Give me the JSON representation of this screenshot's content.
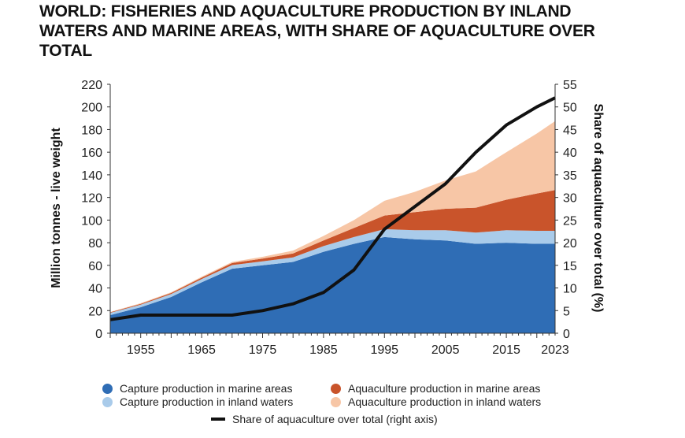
{
  "title_lines": [
    "WORLD: FISHERIES AND AQUACULTURE PRODUCTION BY INLAND",
    "WATERS AND MARINE AREAS, WITH SHARE OF AQUACULTURE OVER",
    "TOTAL"
  ],
  "chart_data": {
    "type": "area",
    "stacked": true,
    "ylabel": "Million tonnes - live weight",
    "y2label": "Share of aquaculture over total (%)",
    "ylim": [
      0,
      220
    ],
    "y2lim": [
      0,
      55
    ],
    "yticks": [
      0,
      20,
      40,
      60,
      80,
      100,
      120,
      140,
      160,
      180,
      200,
      220
    ],
    "y2ticks": [
      0,
      5,
      10,
      15,
      20,
      25,
      30,
      35,
      40,
      45,
      50,
      55
    ],
    "xlim": [
      1950,
      2023
    ],
    "xtick_labels": [
      "1955",
      "1965",
      "1975",
      "1985",
      "1995",
      "2005",
      "2015",
      "2023"
    ],
    "grid": false,
    "legend_position": "bottom",
    "x": [
      1950,
      1955,
      1960,
      1965,
      1970,
      1975,
      1980,
      1985,
      1990,
      1995,
      2000,
      2005,
      2010,
      2015,
      2020,
      2023
    ],
    "series": [
      {
        "name": "Capture production in marine areas",
        "color": "#2f6db5",
        "values": [
          16,
          23,
          32,
          45,
          57,
          60,
          63,
          72,
          79,
          85,
          83,
          82,
          79,
          80,
          79,
          79
        ]
      },
      {
        "name": "Capture production in inland waters",
        "color": "#a9cbea",
        "values": [
          2,
          2.2,
          2.6,
          2.8,
          3.2,
          3.5,
          4,
          5,
          6,
          7,
          8,
          9,
          10,
          11,
          11.5,
          11.5
        ]
      },
      {
        "name": "Aquaculture production in marine areas",
        "color": "#c9542b",
        "values": [
          0.5,
          0.8,
          1,
          1.3,
          1.8,
          2.5,
          3.5,
          5,
          8,
          12,
          16,
          19,
          22,
          27,
          33,
          36
        ]
      },
      {
        "name": "Aquaculture production in inland waters",
        "color": "#f7c6a6",
        "values": [
          0.3,
          0.5,
          0.6,
          0.8,
          1,
          1.5,
          2.5,
          4,
          7,
          13,
          18,
          25,
          32,
          42,
          53,
          61
        ]
      },
      {
        "name": "Share of aquaculture over total (right axis)",
        "color": "#111111",
        "axis": "right",
        "values": [
          3,
          4,
          4,
          4,
          4,
          5,
          6.5,
          9,
          14,
          23,
          28,
          33,
          40,
          46,
          50,
          52
        ]
      }
    ]
  },
  "legend": [
    {
      "label": "Capture production in marine areas",
      "color": "#2f6db5"
    },
    {
      "label": "Aquaculture production in marine areas",
      "color": "#c9542b"
    },
    {
      "label": "Capture production in inland waters",
      "color": "#a9cbea"
    },
    {
      "label": "Aquaculture production in inland waters",
      "color": "#f7c6a6"
    },
    {
      "label": "Share of aquaculture over total (right axis)",
      "color": "#111111"
    }
  ]
}
